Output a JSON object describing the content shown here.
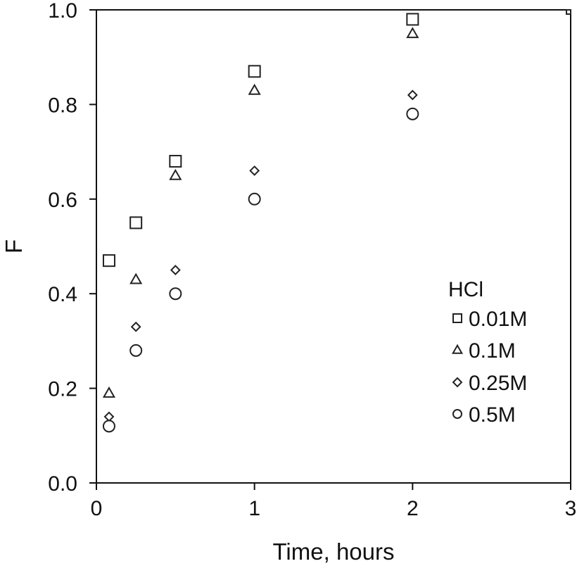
{
  "chart_data": {
    "type": "scatter",
    "xlabel": "Time, hours",
    "ylabel": "F",
    "xlim": [
      0,
      3
    ],
    "ylim": [
      0,
      1.0
    ],
    "x_ticks": [
      "0",
      "1",
      "2",
      "3"
    ],
    "y_ticks": [
      "0.0",
      "0.2",
      "0.4",
      "0.6",
      "0.8",
      "1.0"
    ],
    "grid": false,
    "legend": {
      "title": "HCl",
      "placement": "right-middle"
    },
    "series": [
      {
        "name": "0.01M",
        "marker": "square",
        "points": [
          [
            0.08,
            0.47
          ],
          [
            0.25,
            0.55
          ],
          [
            0.5,
            0.68
          ],
          [
            1,
            0.87
          ],
          [
            2,
            0.98
          ],
          [
            3,
            1.0
          ]
        ]
      },
      {
        "name": "0.1M",
        "marker": "triangle",
        "points": [
          [
            0.08,
            0.19
          ],
          [
            0.25,
            0.43
          ],
          [
            0.5,
            0.65
          ],
          [
            1,
            0.83
          ],
          [
            2,
            0.95
          ]
        ]
      },
      {
        "name": "0.25M",
        "marker": "diamond",
        "points": [
          [
            0.08,
            0.14
          ],
          [
            0.25,
            0.33
          ],
          [
            0.5,
            0.45
          ],
          [
            1,
            0.66
          ],
          [
            2,
            0.82
          ]
        ]
      },
      {
        "name": "0.5M",
        "marker": "circle",
        "points": [
          [
            0.08,
            0.12
          ],
          [
            0.25,
            0.28
          ],
          [
            0.5,
            0.4
          ],
          [
            1,
            0.6
          ],
          [
            2,
            0.78
          ]
        ]
      }
    ]
  }
}
